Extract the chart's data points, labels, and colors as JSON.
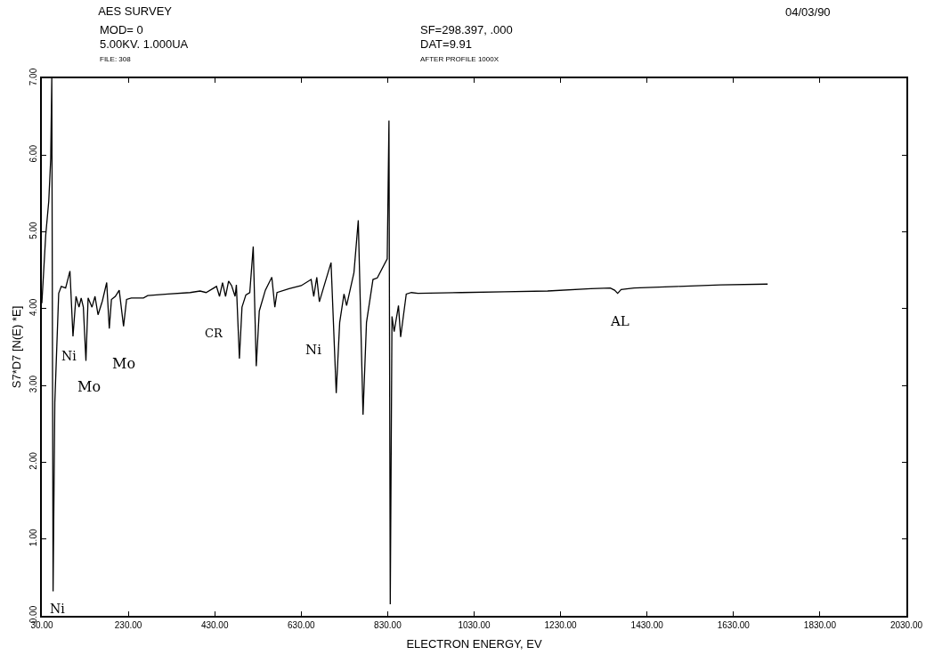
{
  "chart_data": {
    "type": "line",
    "title": "AES SURVEY",
    "xlabel": "ELECTRON ENERGY, EV",
    "ylabel": "S7*D7 [N(E) *E]",
    "annotations": [
      "MOD= 0",
      "5.00KV. 1.000UA",
      "FILE: 308",
      "SF=298.397, .000",
      "DAT=9.91",
      "AFTER PROFILE 1000X",
      "04/03/90",
      "Ni",
      "Mo",
      "Mo",
      "CR",
      "Ni",
      "AL",
      "Ni"
    ],
    "x": [
      30,
      39,
      46,
      50.5,
      53,
      56,
      60,
      69,
      75,
      85,
      95,
      102,
      109,
      116,
      121,
      126,
      132,
      137,
      146,
      153,
      160,
      170,
      180,
      186,
      191,
      200,
      209,
      219,
      226,
      237,
      265,
      275,
      322,
      373,
      396,
      410,
      434,
      441,
      448,
      455,
      462,
      469,
      477,
      480,
      487,
      493,
      502,
      511,
      519,
      526,
      533,
      547,
      562,
      569,
      574,
      602,
      630,
      653,
      659,
      666,
      672,
      681,
      699,
      711,
      719,
      729,
      735,
      752,
      762,
      773,
      781,
      796,
      806,
      829,
      833,
      836,
      840,
      845,
      855,
      860,
      873,
      885,
      900,
      1000,
      1100,
      1200,
      1300,
      1345,
      1355,
      1362,
      1370,
      1400,
      1500,
      1600,
      1709
    ],
    "series": [
      {
        "color": "#000000",
        "values": [
          4.07,
          4.96,
          5.4,
          5.95,
          7.0,
          0.32,
          2.78,
          4.2,
          4.29,
          4.27,
          4.49,
          3.64,
          4.16,
          4.02,
          4.14,
          4.02,
          3.32,
          4.14,
          4.02,
          4.16,
          3.92,
          4.1,
          4.34,
          3.74,
          4.12,
          4.16,
          4.24,
          3.77,
          4.12,
          4.14,
          4.14,
          4.17,
          4.19,
          4.21,
          4.23,
          4.21,
          4.29,
          4.16,
          4.34,
          4.16,
          4.36,
          4.3,
          4.16,
          4.31,
          3.35,
          4.02,
          4.18,
          4.21,
          4.81,
          3.25,
          3.97,
          4.24,
          4.41,
          4.02,
          4.21,
          4.26,
          4.3,
          4.38,
          4.16,
          4.41,
          4.09,
          4.26,
          4.6,
          2.9,
          3.82,
          4.19,
          4.04,
          4.47,
          5.15,
          2.62,
          3.82,
          4.38,
          4.4,
          4.65,
          6.45,
          0.15,
          3.9,
          3.7,
          4.04,
          3.63,
          4.19,
          4.21,
          4.2,
          4.21,
          4.22,
          4.23,
          4.26,
          4.27,
          4.24,
          4.2,
          4.25,
          4.27,
          4.29,
          4.31,
          4.32
        ]
      }
    ],
    "xlim": [
      30,
      2030
    ],
    "xticks": [
      {
        "value": 30,
        "label": "30.00"
      },
      {
        "value": 230,
        "label": "230.00"
      },
      {
        "value": 430,
        "label": "430.00"
      },
      {
        "value": 630,
        "label": "630.00"
      },
      {
        "value": 830,
        "label": "830.00"
      },
      {
        "value": 1030,
        "label": "1030.00"
      },
      {
        "value": 1230,
        "label": "1230.00"
      },
      {
        "value": 1430,
        "label": "1430.00"
      },
      {
        "value": 1630,
        "label": "1630.00"
      },
      {
        "value": 1830,
        "label": "1830.00"
      },
      {
        "value": 2030,
        "label": "2030.00"
      }
    ],
    "ylim": [
      0,
      7
    ],
    "yticks": [
      {
        "value": 0,
        "label": "0.00"
      },
      {
        "value": 1,
        "label": "1.00"
      },
      {
        "value": 2,
        "label": "2.00"
      },
      {
        "value": 3,
        "label": "3.00"
      },
      {
        "value": 4,
        "label": "4.00"
      },
      {
        "value": 5,
        "label": "5.00"
      },
      {
        "value": 6,
        "label": "6.00"
      },
      {
        "value": 7,
        "label": "7.00"
      }
    ],
    "grid": false,
    "marker": "none",
    "line_style": "solid"
  }
}
